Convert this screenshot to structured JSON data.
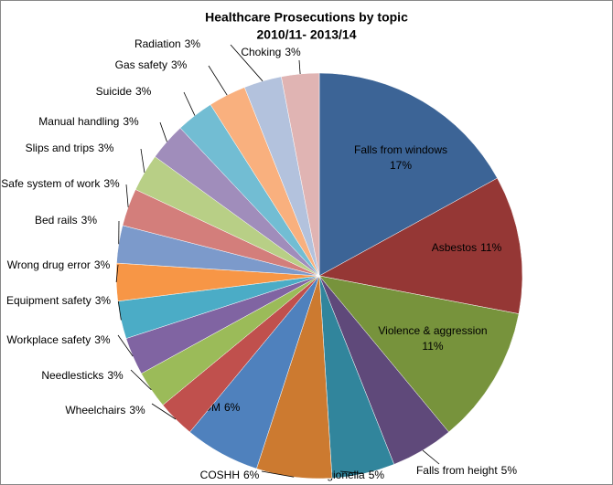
{
  "chart_data": {
    "type": "pie",
    "title": "Healthcare Prosecutions by topic",
    "subtitle": "2010/11- 2013/14",
    "categories": [
      "Falls from windows",
      "Asbestos",
      "Violence & aggression",
      "Falls from height",
      "Legionella",
      "COSHH",
      "CDM",
      "Wheelchairs",
      "Needlesticks",
      "Workplace safety",
      "Equipment safety",
      "Wrong drug error",
      "Bed rails",
      "Safe system of work",
      "Slips and trips",
      "Manual  handling",
      "Suicide",
      "Gas safety",
      "Radiation",
      "Choking"
    ],
    "values": [
      17,
      11,
      11,
      5,
      5,
      6,
      6,
      3,
      3,
      3,
      3,
      3,
      3,
      3,
      3,
      3,
      3,
      3,
      3,
      3
    ],
    "value_labels": [
      "17%",
      "11%",
      "11%",
      "5%",
      "5%",
      "6%",
      "6%",
      "3%",
      "3%",
      "3%",
      "3%",
      "3%",
      "3%",
      "3%",
      "3%",
      "3%",
      "3%",
      "3%",
      "3%",
      "3%"
    ],
    "colors": [
      "#3c6496",
      "#953735",
      "#77933c",
      "#5f497a",
      "#31859c",
      "#cc7a30",
      "#4f81bd",
      "#c0504d",
      "#9bbb59",
      "#8064a2",
      "#4bacc6",
      "#f79646",
      "#7c9acb",
      "#d37e7b",
      "#b8cf86",
      "#a08dbb",
      "#72bdd3",
      "#f9b07e",
      "#b3c2dd",
      "#e0b4b3"
    ]
  }
}
